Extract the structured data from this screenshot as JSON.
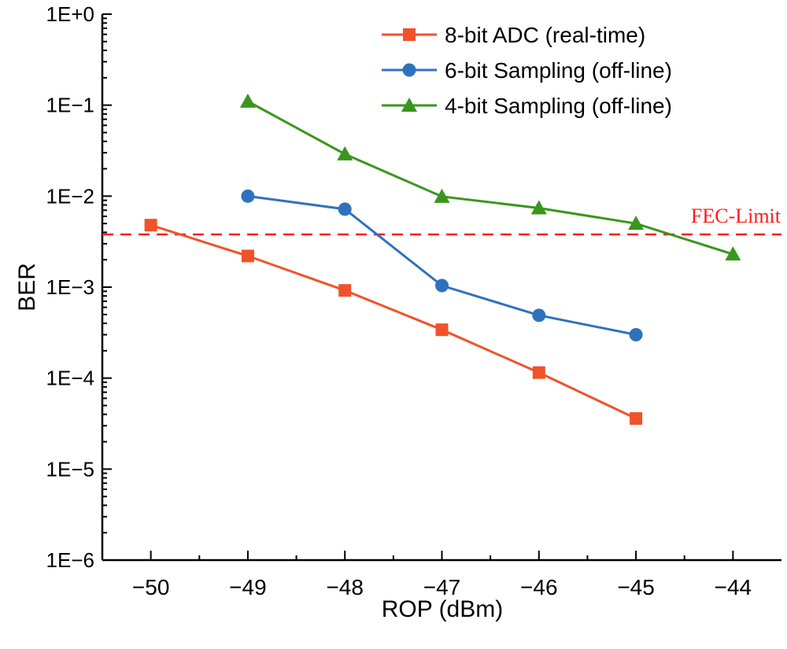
{
  "chart_data": {
    "type": "line",
    "xlabel": "ROP (dBm)",
    "ylabel": "BER",
    "xlim": [
      -50.5,
      -43.5
    ],
    "ylim": [
      1e-06,
      1
    ],
    "yscale": "log",
    "grid": false,
    "legend_placement": "top-right",
    "x_ticks": [
      -50,
      -49,
      -48,
      -47,
      -46,
      -45,
      -44
    ],
    "x_tick_labels": [
      "−50",
      "−49",
      "−48",
      "−47",
      "−46",
      "−45",
      "−44"
    ],
    "y_ticks": [
      1,
      0.1,
      0.01,
      0.001,
      0.0001,
      1e-05,
      1e-06
    ],
    "y_tick_labels": [
      "1E+0",
      "1E−1",
      "1E−2",
      "1E−3",
      "1E−4",
      "1E−5",
      "1E−6"
    ],
    "series": [
      {
        "name": "8-bit ADC (real-time)",
        "color": "#F0522A",
        "marker": "square",
        "x": [
          -50,
          -49,
          -48,
          -47,
          -46,
          -45
        ],
        "y": [
          0.0048,
          0.0022,
          0.00092,
          0.00034,
          0.000115,
          3.6e-05
        ]
      },
      {
        "name": "6-bit Sampling (off-line)",
        "color": "#2E72BE",
        "marker": "circle",
        "x": [
          -49,
          -48,
          -47,
          -46,
          -45
        ],
        "y": [
          0.01,
          0.0072,
          0.00104,
          0.00049,
          0.0003
        ]
      },
      {
        "name": "4-bit Sampling (off-line)",
        "color": "#3A961C",
        "marker": "triangle",
        "x": [
          -49,
          -48,
          -47,
          -46,
          -45,
          -44
        ],
        "y": [
          0.11,
          0.029,
          0.0099,
          0.0074,
          0.005,
          0.0023
        ]
      }
    ],
    "reference_line": {
      "label": "FEC-Limit",
      "y": 0.0038,
      "color": "#FF1A1A",
      "style": "dashed"
    }
  }
}
